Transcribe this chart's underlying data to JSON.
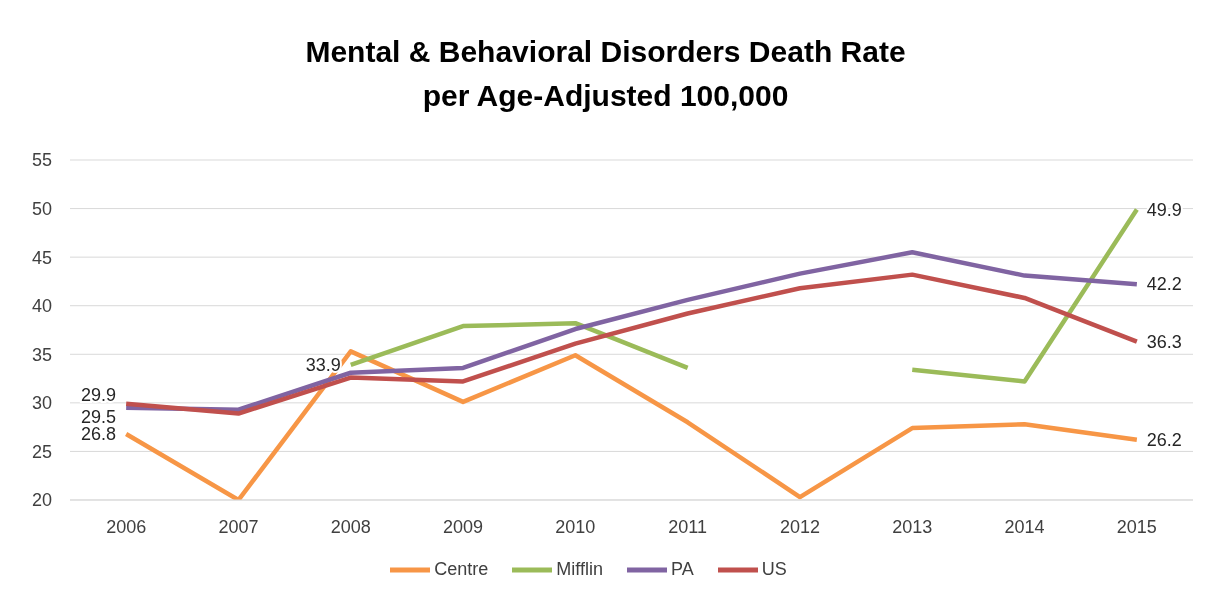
{
  "chart_data": {
    "type": "line",
    "title": "Mental & Behavioral Disorders Death Rate\nper Age-Adjusted 100,000",
    "categories": [
      "2006",
      "2007",
      "2008",
      "2009",
      "2010",
      "2011",
      "2012",
      "2013",
      "2014",
      "2015"
    ],
    "series": [
      {
        "name": "Centre",
        "color": "#f79646",
        "values": [
          26.8,
          20.0,
          35.3,
          30.1,
          34.9,
          28.0,
          20.3,
          27.4,
          27.8,
          26.2
        ],
        "value_labels": [
          "26.8",
          null,
          null,
          null,
          null,
          null,
          null,
          null,
          null,
          "26.2"
        ]
      },
      {
        "name": "Mifflin",
        "color": "#9bbb59",
        "values": [
          null,
          null,
          33.9,
          37.9,
          38.2,
          33.6,
          null,
          33.4,
          32.2,
          49.9
        ],
        "value_labels": [
          null,
          null,
          "33.9",
          null,
          null,
          null,
          null,
          null,
          null,
          "49.9"
        ]
      },
      {
        "name": "PA",
        "color": "#8064a2",
        "values": [
          29.5,
          29.3,
          33.1,
          33.6,
          37.6,
          40.6,
          43.3,
          45.5,
          43.1,
          42.2
        ],
        "value_labels": [
          "29.5",
          null,
          null,
          null,
          null,
          null,
          null,
          null,
          null,
          "42.2"
        ]
      },
      {
        "name": "US",
        "color": "#c0504d",
        "values": [
          29.9,
          28.9,
          32.6,
          32.2,
          36.1,
          39.2,
          41.8,
          43.2,
          40.8,
          36.3
        ],
        "value_labels": [
          "29.9",
          null,
          null,
          null,
          null,
          null,
          null,
          null,
          null,
          "36.3"
        ]
      }
    ],
    "ylim": [
      20,
      55
    ],
    "yticks": [
      20,
      25,
      30,
      35,
      40,
      45,
      50,
      55
    ],
    "grid": "y",
    "legend": "bottom",
    "marker": "none",
    "line_style": "solid"
  }
}
